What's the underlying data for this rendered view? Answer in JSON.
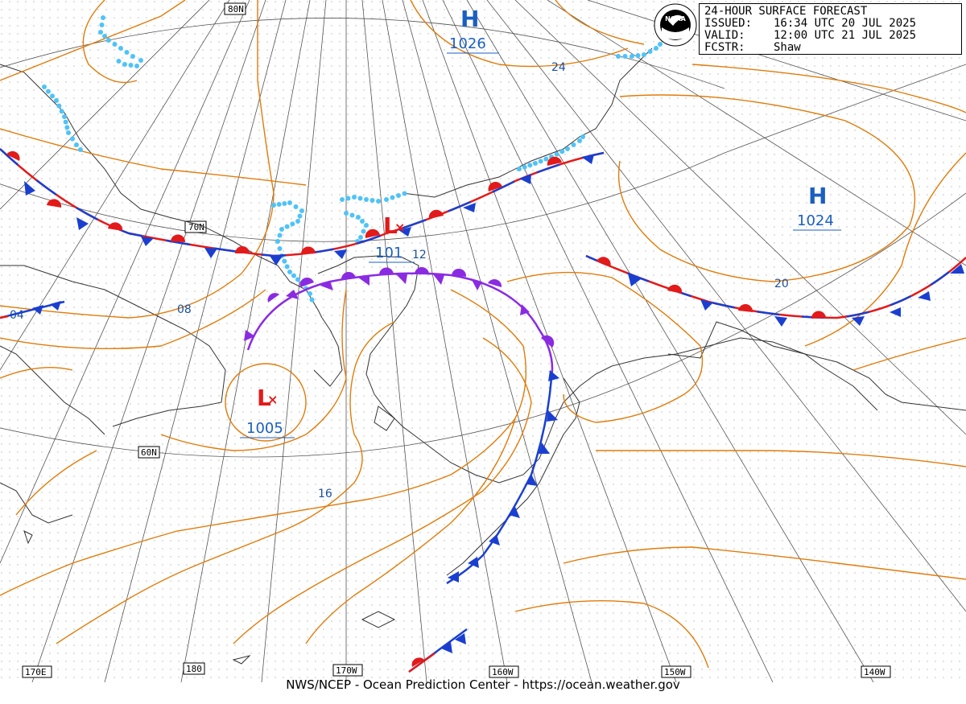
{
  "info": {
    "title": "24-HOUR SURFACE FORECAST",
    "issued_key": "ISSUED:",
    "issued_val": "16:34 UTC 20 JUL 2025",
    "valid_key": "VALID:",
    "valid_val": "12:00 UTC 21 JUL 2025",
    "fcstr_key": "FCSTR:",
    "fcstr_val": "Shaw"
  },
  "logo_text": "NOAA",
  "footer": "NWS/NCEP - Ocean Prediction Center - https://ocean.weather.gov",
  "lat_labels": [
    "80N",
    "70N",
    "60N"
  ],
  "lon_labels": [
    "170E",
    "180",
    "170W",
    "160W",
    "150W",
    "140W"
  ],
  "pressure_centers": {
    "high_1": {
      "symbol": "H",
      "value": "1026"
    },
    "high_2": {
      "symbol": "H",
      "value": "1024"
    },
    "low_1": {
      "symbol": "L",
      "value": "101"
    },
    "low_2": {
      "symbol": "L",
      "value": "1005"
    }
  },
  "isobar_labels": [
    "24",
    "20",
    "12",
    "04",
    "08",
    "16"
  ],
  "colors": {
    "isobar": "#e07b0a",
    "warm_front": "#e31a1a",
    "cold_front": "#1a3fd0",
    "occluded_front": "#8a2be2",
    "ice_edge": "#4fc3f7",
    "high": "#1a5fc0",
    "low": "#e31a1a"
  }
}
